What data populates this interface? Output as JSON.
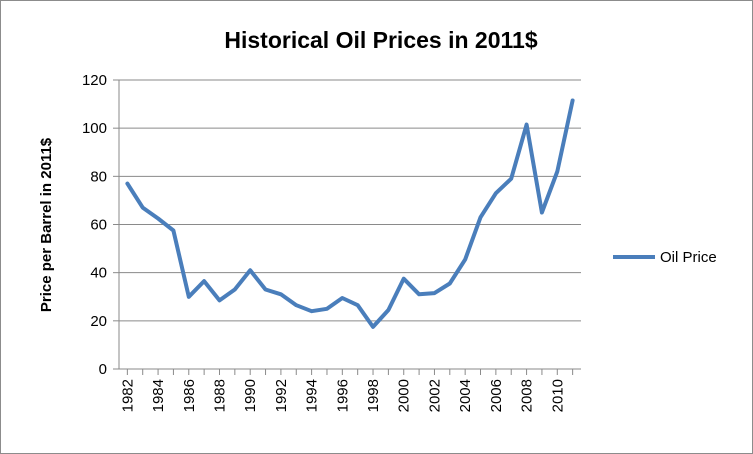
{
  "chart_data": {
    "type": "line",
    "title": "Historical Oil Prices in 2011$",
    "ylabel": "Price per Barrel in 2011$",
    "xlabel": "",
    "ylim": [
      0,
      120
    ],
    "yticks": [
      0,
      20,
      40,
      60,
      80,
      100,
      120
    ],
    "xticks": [
      "1982",
      "1984",
      "1986",
      "1988",
      "1990",
      "1992",
      "1994",
      "1996",
      "1998",
      "2000",
      "2002",
      "2004",
      "2006",
      "2008",
      "2010"
    ],
    "grid": true,
    "legend": "right",
    "x": [
      1982,
      1983,
      1984,
      1985,
      1986,
      1987,
      1988,
      1989,
      1990,
      1991,
      1992,
      1993,
      1994,
      1995,
      1996,
      1997,
      1998,
      1999,
      2000,
      2001,
      2002,
      2003,
      2004,
      2005,
      2006,
      2007,
      2008,
      2009,
      2010,
      2011
    ],
    "series": [
      {
        "name": "Oil Price",
        "color": "#4a7ebb",
        "values": [
          77,
          67,
          62.5,
          57.5,
          30,
          36.5,
          28.5,
          33,
          41,
          33,
          31,
          26.5,
          24,
          25,
          29.5,
          26.5,
          17.5,
          24.5,
          37.5,
          31,
          31.5,
          35.5,
          45.5,
          63,
          73,
          79,
          101.5,
          65,
          82,
          111.5
        ]
      }
    ]
  }
}
